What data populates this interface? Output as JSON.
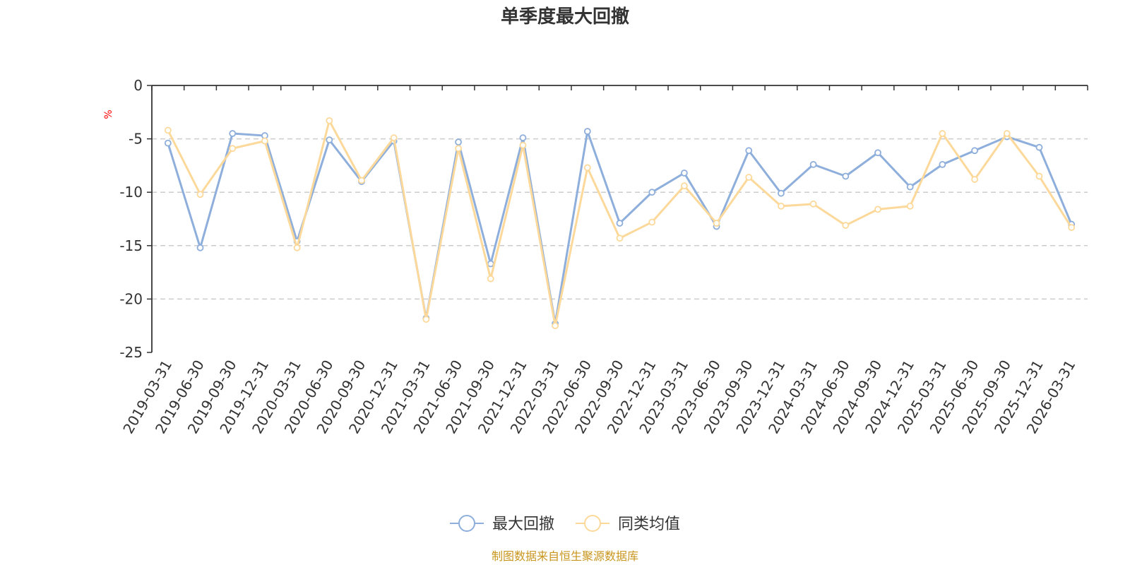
{
  "chart_data": {
    "type": "line",
    "title": "单季度最大回撤",
    "ylabel": "%",
    "ylim": [
      -25,
      0
    ],
    "yticks": [
      0,
      -5,
      -10,
      -15,
      -20,
      -25
    ],
    "grid": true,
    "legend_position": "bottom",
    "categories": [
      "2019-03-31",
      "2019-06-30",
      "2019-09-30",
      "2019-12-31",
      "2020-03-31",
      "2020-06-30",
      "2020-09-30",
      "2020-12-31",
      "2021-03-31",
      "2021-06-30",
      "2021-09-30",
      "2021-12-31",
      "2022-03-31",
      "2022-06-30",
      "2022-09-30",
      "2022-12-31",
      "2023-03-31",
      "2023-06-30",
      "2023-09-30",
      "2023-12-31",
      "2024-03-31",
      "2024-06-30",
      "2024-09-30",
      "2024-12-31",
      "2025-03-31",
      "2025-06-30",
      "2025-09-30",
      "2025-12-31",
      "2026-03-31"
    ],
    "series": [
      {
        "name": "最大回撤",
        "color": "#8eaedb",
        "values": [
          -5.4,
          -15.2,
          -4.5,
          -4.7,
          -14.6,
          -5.1,
          -9.0,
          -5.2,
          -21.8,
          -5.3,
          -16.7,
          -4.9,
          -22.3,
          -4.3,
          -12.9,
          -10.0,
          -8.2,
          -13.2,
          -6.1,
          -10.1,
          -7.4,
          -8.5,
          -6.3,
          -9.5,
          -7.4,
          -6.1,
          -4.8,
          -5.8,
          -13.0
        ]
      },
      {
        "name": "同类均值",
        "color": "#fcd99a",
        "values": [
          -4.2,
          -10.2,
          -5.9,
          -5.2,
          -15.2,
          -3.3,
          -8.9,
          -4.9,
          -21.9,
          -5.9,
          -18.1,
          -5.6,
          -22.5,
          -7.7,
          -14.3,
          -12.8,
          -9.4,
          -12.9,
          -8.6,
          -11.3,
          -11.1,
          -13.1,
          -11.6,
          -11.3,
          -4.5,
          -8.8,
          -4.5,
          -8.5,
          -13.3
        ]
      }
    ]
  },
  "source_note": "制图数据来自恒生聚源数据库",
  "colors": {
    "axis": "#333333",
    "grid": "#cccccc",
    "unit": "#ff0000",
    "source": "#c8961e"
  }
}
